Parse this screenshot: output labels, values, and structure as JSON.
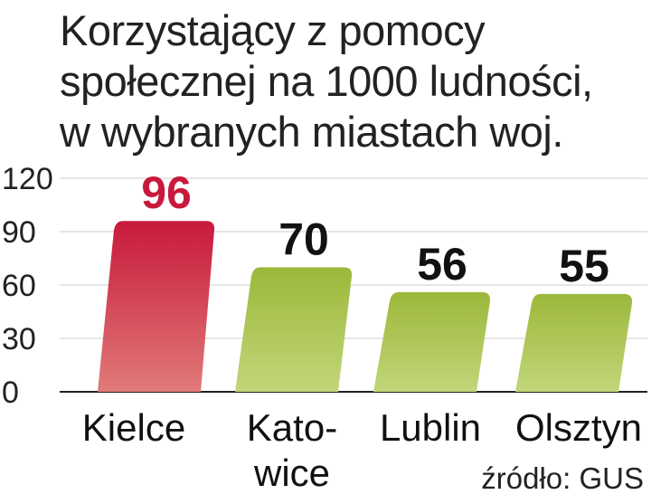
{
  "chart_data": {
    "type": "bar",
    "title": [
      "Korzystający z pomocy",
      "społecznej na 1000 ludności,",
      "w wybranych miastach woj."
    ],
    "categories": [
      [
        "Kielce"
      ],
      [
        "Kato-",
        "wice"
      ],
      [
        "Lublin"
      ],
      [
        "Olsztyn"
      ]
    ],
    "values": [
      96,
      70,
      56,
      55
    ],
    "ylim": [
      0,
      120
    ],
    "yticks": [
      0,
      30,
      60,
      90,
      120
    ],
    "grid": true,
    "highlight_index": 0,
    "colors": {
      "highlight_top": "#c8193c",
      "highlight_bottom": "#e07a78",
      "normal_top": "#9cb83a",
      "normal_bottom": "#c2d67a",
      "grid": "#e6e6e6"
    },
    "source": "źródło: GUS"
  }
}
